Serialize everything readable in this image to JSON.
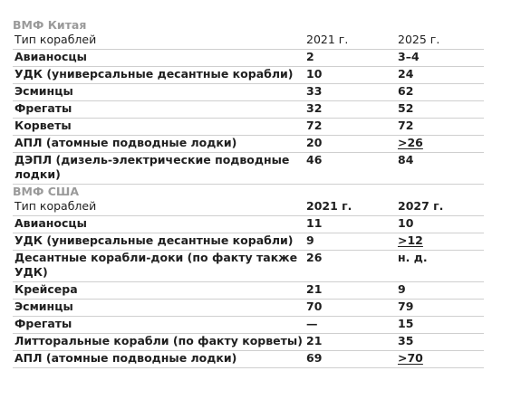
{
  "china": {
    "title": "ВМФ Китая",
    "header": {
      "type": "Тип кораблей",
      "y1": "2021 г.",
      "y2": "2025 г."
    },
    "rows": [
      {
        "name": "Авианосцы",
        "v1": "2",
        "v2": "3–4"
      },
      {
        "name": "УДК (универсальные десантные корабли)",
        "v1": "10",
        "v2": "24"
      },
      {
        "name": "Эсминцы",
        "v1": "33",
        "v2": "62"
      },
      {
        "name": "Фрегаты",
        "v1": "32",
        "v2": "52"
      },
      {
        "name": "Корветы",
        "v1": "72",
        "v2": "72"
      },
      {
        "name": "АПЛ (атомные подводные лодки)",
        "v1": "20",
        "v2": ">26"
      },
      {
        "name": "ДЭПЛ (дизель-электрические подводные лодки)",
        "v1": "46",
        "v2": "84"
      }
    ]
  },
  "usa": {
    "title": "ВМФ США",
    "header": {
      "type": "Тип кораблей",
      "y1": "2021 г.",
      "y2": "2027 г."
    },
    "rows": [
      {
        "name": "Авианосцы",
        "v1": "11",
        "v2": "10"
      },
      {
        "name": "УДК (универсальные десантные корабли)",
        "v1": "9",
        "v2": ">12"
      },
      {
        "name": "Десантные корабли-доки (по факту также УДК)",
        "v1": "26",
        "v2": "н. д."
      },
      {
        "name": "Крейсера",
        "v1": "21",
        "v2": "9"
      },
      {
        "name": "Эсминцы",
        "v1": "70",
        "v2": "79"
      },
      {
        "name": "Фрегаты",
        "v1": "—",
        "v2": "15"
      },
      {
        "name": "Литторальные корабли (по факту корветы)",
        "v1": "21",
        "v2": "35"
      },
      {
        "name": "АПЛ (атомные подводные лодки)",
        "v1": "69",
        "v2": ">70"
      }
    ]
  }
}
